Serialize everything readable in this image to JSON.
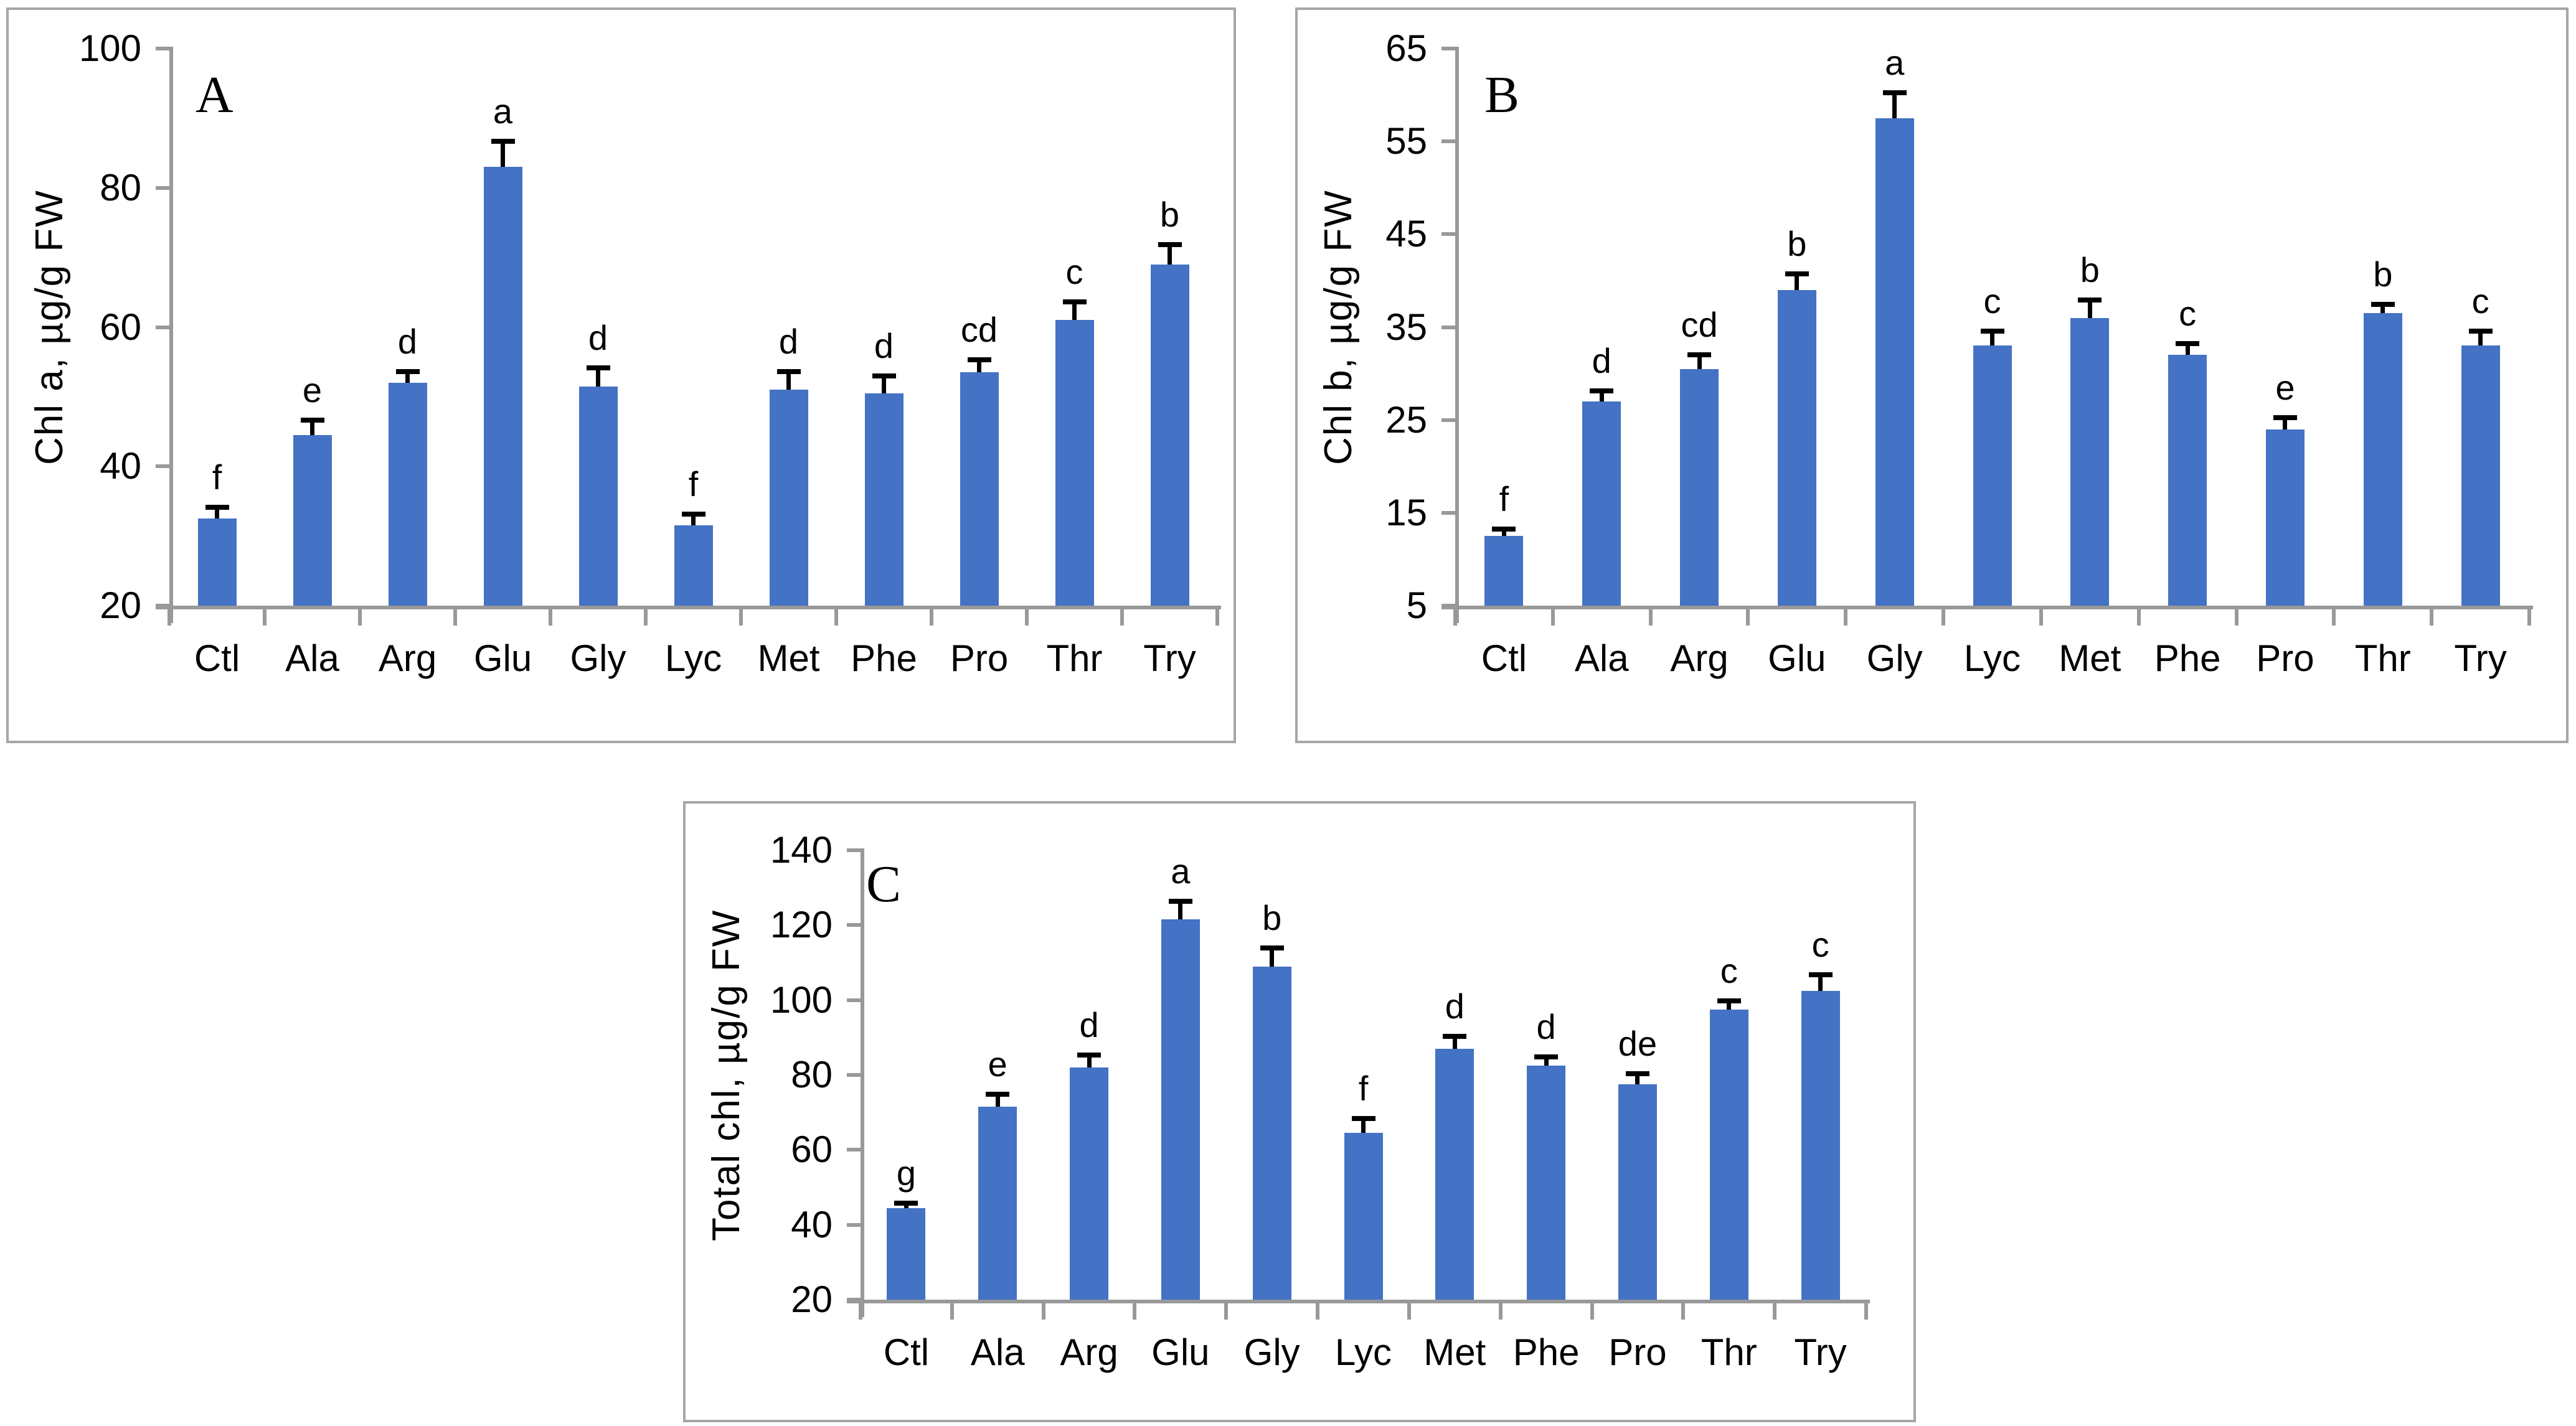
{
  "colors": {
    "bar": "#4472C4",
    "error_bar": "#000000",
    "axis": "#999999",
    "panel_border": "#a6a6a6",
    "text": "#000000",
    "background": "#ffffff"
  },
  "chart_data": [
    {
      "type": "bar",
      "panel_label": "A",
      "title": "",
      "xlabel": "",
      "ylabel": "Chl a, µg/g FW",
      "ylim": [
        20,
        100
      ],
      "yticks": [
        20,
        40,
        60,
        80,
        100
      ],
      "grid": false,
      "legend_position": "none",
      "categories": [
        "Ctl",
        "Ala",
        "Arg",
        "Glu",
        "Gly",
        "Lyc",
        "Met",
        "Phe",
        "Pro",
        "Thr",
        "Try"
      ],
      "values": [
        32.5,
        44.5,
        52,
        83,
        51.5,
        31.5,
        51,
        50.5,
        53.5,
        61,
        69
      ],
      "errors": [
        2,
        2.5,
        2,
        4,
        3,
        2,
        3,
        2.8,
        2.2,
        3,
        3.2
      ],
      "sig_letters": [
        "f",
        "e",
        "d",
        "a",
        "d",
        "f",
        "d",
        "d",
        "cd",
        "c",
        "b"
      ]
    },
    {
      "type": "bar",
      "panel_label": "B",
      "title": "",
      "xlabel": "",
      "ylabel": "Chl b, µg/g FW",
      "ylim": [
        5,
        65
      ],
      "yticks": [
        5,
        15,
        25,
        35,
        45,
        55,
        65
      ],
      "grid": false,
      "legend_position": "none",
      "categories": [
        "Ctl",
        "Ala",
        "Arg",
        "Glu",
        "Gly",
        "Lyc",
        "Met",
        "Phe",
        "Pro",
        "Thr",
        "Try"
      ],
      "values": [
        12.5,
        27,
        30.5,
        39,
        57.5,
        33,
        36,
        32,
        24,
        36.5,
        33
      ],
      "errors": [
        1,
        1.4,
        1.8,
        2,
        3,
        1.8,
        2.2,
        1.5,
        1.5,
        1.2,
        1.8
      ],
      "sig_letters": [
        "f",
        "d",
        "cd",
        "b",
        "a",
        "c",
        "b",
        "c",
        "e",
        "b",
        "c"
      ]
    },
    {
      "type": "bar",
      "panel_label": "C",
      "title": "",
      "xlabel": "",
      "ylabel": "Total chl, µg/g FW",
      "ylim": [
        20,
        140
      ],
      "yticks": [
        20,
        40,
        60,
        80,
        100,
        120,
        140
      ],
      "grid": false,
      "legend_position": "none",
      "categories": [
        "Ctl",
        "Ala",
        "Arg",
        "Glu",
        "Gly",
        "Lyc",
        "Met",
        "Phe",
        "Pro",
        "Thr",
        "Try"
      ],
      "values": [
        44.5,
        71.5,
        82,
        121.5,
        109,
        64.5,
        87,
        82.5,
        77.5,
        97.5,
        102.5
      ],
      "errors": [
        2,
        4,
        4,
        5.5,
        5.5,
        4.5,
        4,
        3,
        3.5,
        3,
        5
      ],
      "sig_letters": [
        "g",
        "e",
        "d",
        "a",
        "b",
        "f",
        "d",
        "d",
        "de",
        "c",
        "c"
      ]
    }
  ]
}
